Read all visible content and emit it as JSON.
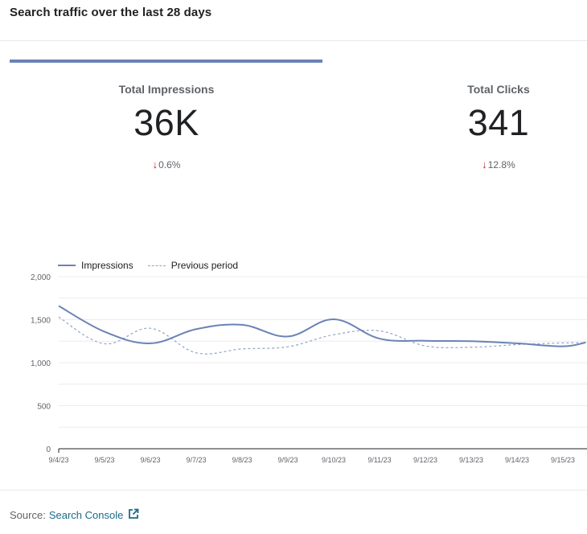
{
  "header": {
    "title": "Search traffic over the last 28 days"
  },
  "metrics": {
    "impressions": {
      "label": "Total Impressions",
      "value": "36K",
      "change": "0.6%"
    },
    "clicks": {
      "label": "Total Clicks",
      "value": "341",
      "change": "12.8%"
    }
  },
  "footer": {
    "source_label": "Source:",
    "source_link": "Search Console"
  },
  "colors": {
    "accent": "#6b83b5",
    "previous": "#8fa3c8",
    "decrease": "#c5221f"
  },
  "chart_data": {
    "type": "line",
    "categories": [
      "9/4/23",
      "9/5/23",
      "9/6/23",
      "9/7/23",
      "9/8/23",
      "9/9/23",
      "9/10/23",
      "9/11/23",
      "9/12/23",
      "9/13/23",
      "9/14/23",
      "9/15/23"
    ],
    "yticks": [
      "0",
      "500",
      "1,000",
      "1,500",
      "2,000"
    ],
    "ylim": [
      0,
      2000
    ],
    "grid": true,
    "legend_position": "top-left",
    "series": [
      {
        "name": "Impressions",
        "style": "solid",
        "x": [
          0,
          1,
          2,
          3,
          4,
          5,
          6,
          7,
          8,
          9,
          10,
          11,
          11.5
        ],
        "y": [
          1660,
          1360,
          1225,
          1390,
          1440,
          1305,
          1505,
          1280,
          1255,
          1250,
          1225,
          1190,
          1235
        ]
      },
      {
        "name": "Previous period",
        "style": "dashed",
        "x": [
          0,
          1,
          2,
          3,
          4,
          5,
          6,
          7,
          8,
          9,
          10,
          11,
          11.5
        ],
        "y": [
          1530,
          1220,
          1400,
          1115,
          1160,
          1185,
          1325,
          1370,
          1195,
          1180,
          1210,
          1230,
          1230
        ]
      }
    ]
  }
}
